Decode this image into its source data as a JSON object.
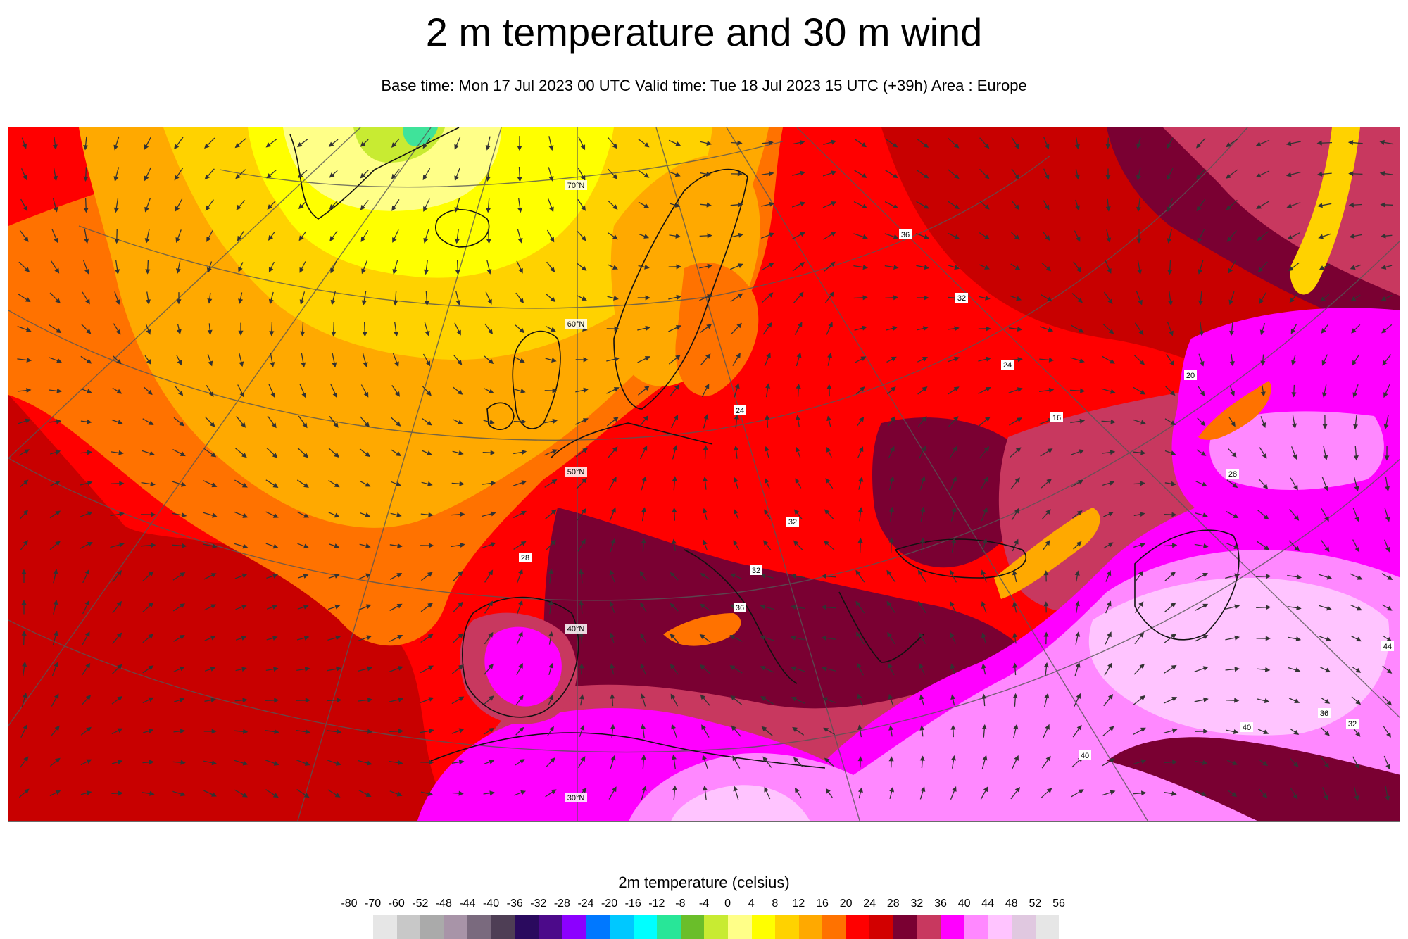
{
  "header": {
    "title": "2 m temperature and 30 m wind",
    "subtitle": "Base time: Mon 17 Jul 2023 00 UTC Valid time: Tue 18 Jul 2023 15 UTC (+39h) Area : Europe"
  },
  "map": {
    "latitude_labels": [
      "70°N",
      "60°N",
      "50°N",
      "40°N",
      "30°N"
    ],
    "value_labels": [
      "24",
      "32",
      "32",
      "28",
      "36",
      "40",
      "44",
      "16",
      "20",
      "24",
      "28",
      "32",
      "36",
      "40",
      "36",
      "32"
    ],
    "colors": {
      "dark_red": "#c80000",
      "red": "#ff0000",
      "orange": "#ff7200",
      "amber": "#ffa900",
      "gold": "#ffd200",
      "yellow": "#ffff00",
      "light_yellow": "#ffff88",
      "lime": "#c8eb32",
      "green": "#6abe2a",
      "mint": "#3fe39a",
      "maroon": "#7a0032",
      "raspberry": "#c8385f",
      "magenta": "#ff00ff",
      "pink": "#ff88ff",
      "light_pink": "#ffc4ff"
    }
  },
  "legend": {
    "title": "2m temperature (celsius)",
    "ticks": [
      "-80",
      "-70",
      "-60",
      "-52",
      "-48",
      "-44",
      "-40",
      "-36",
      "-32",
      "-28",
      "-24",
      "-20",
      "-16",
      "-12",
      "-8",
      "-4",
      "0",
      "4",
      "8",
      "12",
      "16",
      "20",
      "24",
      "28",
      "32",
      "36",
      "40",
      "44",
      "48",
      "52",
      "56"
    ],
    "colors": [
      "#e6e6e6",
      "#c8c8c8",
      "#aaaaaa",
      "#a894a8",
      "#7a6a7e",
      "#4e3e55",
      "#2a0a5e",
      "#4c0a8a",
      "#8c00ff",
      "#0078ff",
      "#00c8ff",
      "#00ffff",
      "#28e698",
      "#6abe2a",
      "#c8eb32",
      "#ffff88",
      "#ffff00",
      "#ffd200",
      "#ffa900",
      "#ff7200",
      "#ff0000",
      "#d20000",
      "#7a0032",
      "#c8385f",
      "#ff00ff",
      "#ff88ff",
      "#ffc4ff",
      "#e0c8e0",
      "#e6e6e6"
    ]
  }
}
